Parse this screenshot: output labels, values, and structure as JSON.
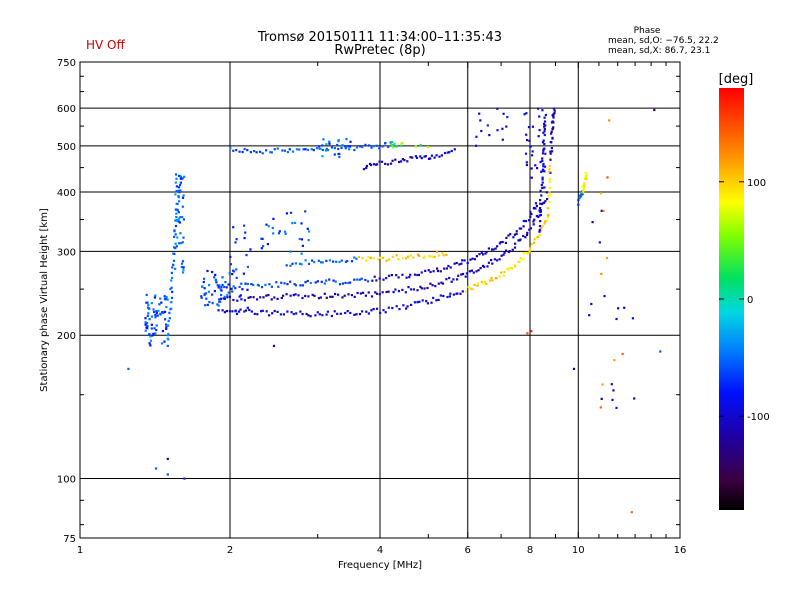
{
  "header": {
    "title_line1": "Tromsø 20150111 11:34:00–11:35:43",
    "title_line2": "RwPretec (8p)",
    "hv_status": "HV Off",
    "hv_color": "#cc0000",
    "phase_title": "Phase",
    "phase_o": "mean, sd,O: −76.5, 22.2",
    "phase_x": "mean, sd,X:  86.7, 23.1"
  },
  "chart_data": {
    "type": "scatter",
    "title": "Tromsø 20150111 11:34:00–11:35:43",
    "subtitle": "RwPretec (8p)",
    "xlabel": "Frequency [MHz]",
    "ylabel": "Stationary phase Virtual Height [km]",
    "xscale": "log",
    "yscale": "log",
    "xlim": [
      1,
      16
    ],
    "ylim": [
      75,
      750
    ],
    "grid": true,
    "x_ticks": [
      1,
      2,
      4,
      6,
      8,
      10,
      16
    ],
    "y_ticks": [
      75,
      100,
      200,
      300,
      400,
      500,
      600,
      750
    ],
    "x_grid": [
      2,
      4,
      6,
      8,
      10
    ],
    "y_grid": [
      100,
      200,
      300,
      400,
      500,
      600
    ],
    "colorbar": {
      "label": "[deg]",
      "range": [
        -180,
        180
      ],
      "ticks": [
        100,
        0,
        -100
      ]
    },
    "traces": [
      {
        "x": [
          1.9,
          2.1,
          2.4,
          2.8,
          3.2,
          3.6,
          4.0,
          4.5,
          5.0,
          5.5,
          6.0,
          6.5,
          7.0,
          7.5,
          8.0,
          8.4,
          8.8
        ],
        "y": [
          225,
          224,
          223,
          222,
          222,
          223,
          225,
          230,
          236,
          243,
          250,
          258,
          268,
          282,
          302,
          330,
          365
        ],
        "color_start": -95,
        "color_end": 95,
        "switch_x": 5.9
      },
      {
        "x": [
          1.9,
          2.2,
          2.6,
          3.0,
          3.5,
          4.0,
          4.5,
          5.0,
          5.5,
          6.0,
          6.5,
          7.0,
          7.5,
          8.0,
          8.4,
          8.7
        ],
        "y": [
          238,
          240,
          241,
          242,
          243,
          245,
          249,
          254,
          261,
          270,
          280,
          293,
          310,
          335,
          365,
          400
        ],
        "color_start": -110,
        "color_end": -100,
        "switch_x": 99
      },
      {
        "x": [
          1.9,
          2.2,
          2.5,
          3.0,
          3.5,
          4.0,
          4.5,
          5.0,
          5.5,
          6.0,
          6.5,
          7.0,
          7.5,
          8.0,
          8.3
        ],
        "y": [
          252,
          255,
          256,
          258,
          260,
          263,
          267,
          272,
          278,
          287,
          298,
          312,
          330,
          355,
          385
        ],
        "color_start": -60,
        "color_end": -105,
        "switch_x": 3.8
      },
      {
        "x": [
          2.6,
          3.0,
          3.5,
          4.0,
          4.5,
          5.0,
          5.5
        ],
        "y": [
          283,
          286,
          288,
          290,
          292,
          295,
          298
        ],
        "color_start": -55,
        "color_end": 100,
        "switch_x": 3.6
      },
      {
        "x": [
          2.0,
          2.4,
          2.8,
          3.2,
          3.6,
          4.0,
          4.3
        ],
        "y": [
          490,
          488,
          490,
          492,
          496,
          500,
          505
        ],
        "color_start": -60,
        "color_end": -60,
        "switch_x": 99
      },
      {
        "x": [
          3.7,
          4.0,
          4.4,
          4.8,
          5.2,
          5.7
        ],
        "y": [
          452,
          458,
          465,
          472,
          478,
          487
        ],
        "color_start": -105,
        "color_end": -105,
        "switch_x": 99
      },
      {
        "x": [
          1.5,
          1.52,
          1.53,
          1.55,
          1.56,
          1.58,
          1.6
        ],
        "y": [
          195,
          230,
          270,
          320,
          360,
          400,
          430
        ],
        "color_start": -55,
        "color_end": -55,
        "switch_x": 99
      },
      {
        "x": [
          8.35,
          8.4,
          8.45,
          8.5,
          8.55,
          8.6
        ],
        "y": [
          330,
          380,
          430,
          480,
          530,
          580
        ],
        "color_start": -100,
        "color_end": -110,
        "switch_x": 99
      },
      {
        "x": [
          8.7,
          8.75,
          8.8,
          8.85,
          8.9,
          8.95
        ],
        "y": [
          360,
          420,
          480,
          530,
          570,
          600
        ],
        "color_start": 95,
        "color_end": -110,
        "switch_x": 8.78
      },
      {
        "x": [
          10.0,
          10.2,
          10.3,
          10.4
        ],
        "y": [
          380,
          400,
          420,
          440
        ],
        "color_start": -60,
        "color_end": 80,
        "switch_x": 10.2
      }
    ],
    "clusters": [
      {
        "x": [
          1.35,
          1.5
        ],
        "y": [
          190,
          245
        ],
        "n": 70,
        "color": -60
      },
      {
        "x": [
          1.55,
          1.62
        ],
        "y": [
          270,
          440
        ],
        "n": 40,
        "color": -55
      },
      {
        "x": [
          1.75,
          2.0
        ],
        "y": [
          230,
          275
        ],
        "n": 45,
        "color": -65
      },
      {
        "x": [
          2.0,
          2.2
        ],
        "y": [
          220,
          355
        ],
        "n": 25,
        "color": -75
      },
      {
        "x": [
          2.3,
          2.9
        ],
        "y": [
          295,
          370
        ],
        "n": 28,
        "color": -60
      },
      {
        "x": [
          3.0,
          3.5
        ],
        "y": [
          470,
          520
        ],
        "n": 25,
        "color": -55
      },
      {
        "x": [
          4.2,
          5.0
        ],
        "y": [
          495,
          515
        ],
        "n": 12,
        "color": 40
      },
      {
        "x": [
          6.2,
          7.2
        ],
        "y": [
          500,
          600
        ],
        "n": 14,
        "color": -90
      },
      {
        "x": [
          7.8,
          8.6
        ],
        "y": [
          400,
          600
        ],
        "n": 30,
        "color": -100
      },
      {
        "x": [
          10.5,
          13.0
        ],
        "y": [
          140,
          380
        ],
        "n": 16,
        "color": -110
      },
      {
        "x": [
          11.0,
          12.5
        ],
        "y": [
          120,
          600
        ],
        "n": 10,
        "color": 130
      }
    ],
    "isolated_points": [
      {
        "x": 1.25,
        "y": 170,
        "color": -55
      },
      {
        "x": 1.42,
        "y": 105,
        "color": -55
      },
      {
        "x": 1.5,
        "y": 102,
        "color": -60
      },
      {
        "x": 1.62,
        "y": 100,
        "color": -70
      },
      {
        "x": 1.5,
        "y": 110,
        "color": -130
      },
      {
        "x": 2.45,
        "y": 190,
        "color": -140
      },
      {
        "x": 7.9,
        "y": 202,
        "color": 150
      },
      {
        "x": 8.05,
        "y": 204,
        "color": 165
      },
      {
        "x": 9.8,
        "y": 170,
        "color": -120
      },
      {
        "x": 12.8,
        "y": 85,
        "color": 140
      },
      {
        "x": 14.6,
        "y": 185,
        "color": -60
      },
      {
        "x": 14.2,
        "y": 595,
        "color": -150
      }
    ]
  }
}
